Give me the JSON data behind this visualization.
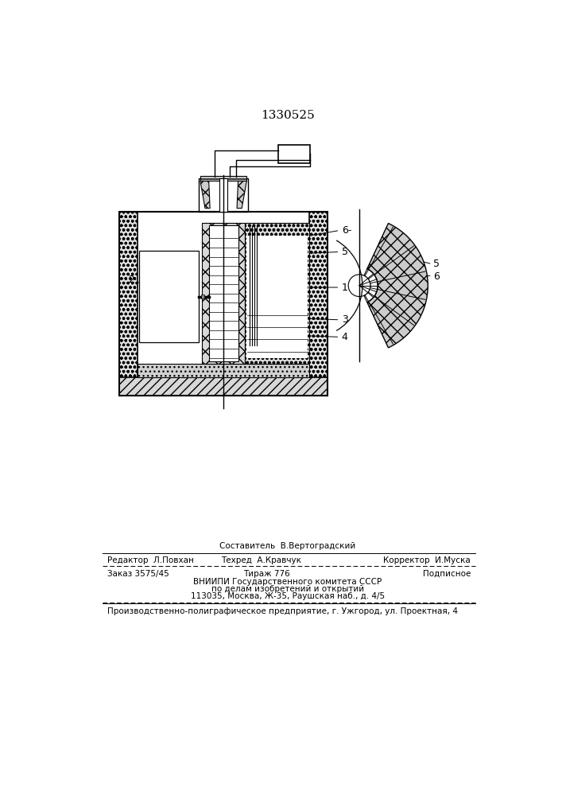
{
  "patent_number": "1330525",
  "bg_color": "#ffffff",
  "line_color": "#000000",
  "footer_lines": [
    {
      "left": "Редактор  Л.Повхан",
      "center": "Техред  А.Кравчук",
      "right": "Корректор  И.Муска"
    },
    {
      "left": "Заказ 3575/45",
      "center": "Тираж 776",
      "right": "Подписное"
    },
    {
      "center": "ВНИИПИ Государственного комитета СССР"
    },
    {
      "center": "по делам изобретений и открытий"
    },
    {
      "center": "113035, Москва, Ж-35, Раушская наб., д. 4/5"
    },
    {
      "left": "Производственно-полиграфическое предприятие, г. Ужгород, ул. Проектная, 4"
    }
  ],
  "sostavitel": "Составитель  В.Вертоградский"
}
